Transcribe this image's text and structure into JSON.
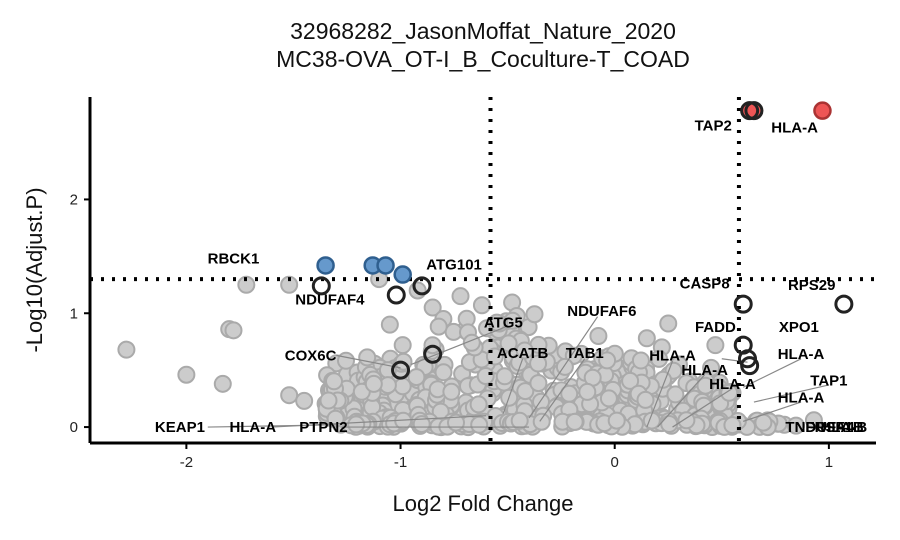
{
  "chart_data": {
    "type": "scatter",
    "title": "32968282_JasonMoffat_Nature_2020",
    "subtitle": "MC38-OVA_OT-I_B_Coculture-T_COAD",
    "xlabel": "Log2 Fold Change",
    "ylabel": "-Log10(Adjust.P)",
    "xlim": [
      -2.45,
      1.22
    ],
    "ylim": [
      -0.14,
      2.9
    ],
    "xticks": [
      -2,
      -1,
      0,
      1
    ],
    "yticks": [
      0,
      1,
      2
    ],
    "thresholds": {
      "x": [
        -0.58,
        0.58
      ],
      "y": 1.3
    },
    "grid": false,
    "legend": "none",
    "colors": {
      "down": "#6699cc",
      "up": "#ee5555",
      "ns": "#cccccc",
      "highlight": "#222222"
    },
    "down_points": [
      {
        "x": -1.35,
        "y": 1.42
      },
      {
        "x": -1.13,
        "y": 1.42
      },
      {
        "x": -1.07,
        "y": 1.42
      },
      {
        "x": -0.99,
        "y": 1.34
      }
    ],
    "up_points": [
      {
        "x": 0.97,
        "y": 2.78
      },
      {
        "x": 0.63,
        "y": 2.78
      },
      {
        "x": 0.65,
        "y": 2.78
      }
    ],
    "ns_points": [
      {
        "x": -2.28,
        "y": 0.68
      },
      {
        "x": -2.0,
        "y": 0.46
      },
      {
        "x": -1.83,
        "y": 0.38
      },
      {
        "x": -1.8,
        "y": 0.86
      },
      {
        "x": -1.78,
        "y": 0.85
      },
      {
        "x": -1.72,
        "y": 1.25
      },
      {
        "x": -1.52,
        "y": 1.25
      },
      {
        "x": -1.52,
        "y": 0.28
      },
      {
        "x": -1.45,
        "y": 0.23
      },
      {
        "x": -1.3,
        "y": 0.56
      },
      {
        "x": -1.25,
        "y": 0.46
      },
      {
        "x": -1.2,
        "y": 0.38
      },
      {
        "x": -1.18,
        "y": 0.26
      },
      {
        "x": -1.1,
        "y": 1.3
      },
      {
        "x": -1.05,
        "y": 0.9
      },
      {
        "x": -0.99,
        "y": 0.72
      },
      {
        "x": -0.92,
        "y": 1.2
      },
      {
        "x": -0.85,
        "y": 1.05
      },
      {
        "x": -0.8,
        "y": 0.95
      },
      {
        "x": -0.72,
        "y": 1.15
      },
      {
        "x": -0.7,
        "y": 0.85
      },
      {
        "x": -0.65,
        "y": 0.55
      },
      {
        "x": -0.62,
        "y": 1.07
      },
      {
        "x": -0.55,
        "y": 0.7
      },
      {
        "x": -0.5,
        "y": 0.4
      },
      {
        "x": -0.45,
        "y": 0.68
      },
      {
        "x": -0.4,
        "y": 0.3
      },
      {
        "x": -0.3,
        "y": 0.55
      },
      {
        "x": -0.2,
        "y": 0.62
      },
      {
        "x": -0.1,
        "y": 0.45
      },
      {
        "x": 0.05,
        "y": 0.35
      },
      {
        "x": 0.15,
        "y": 0.78
      },
      {
        "x": 0.22,
        "y": 0.7
      },
      {
        "x": 0.25,
        "y": 0.91
      },
      {
        "x": 0.3,
        "y": 0.55
      },
      {
        "x": 0.35,
        "y": 0.4
      },
      {
        "x": 0.45,
        "y": 0.52
      },
      {
        "x": 0.47,
        "y": 0.72
      },
      {
        "x": 0.55,
        "y": 0.3
      },
      {
        "x": 0.72,
        "y": 0.02
      },
      {
        "x": 0.93,
        "y": 0.06
      }
    ],
    "highlight_points": [
      {
        "gene": "TAP2",
        "x": 0.63,
        "y": 2.78
      },
      {
        "gene": "HLA-A",
        "x": 0.65,
        "y": 2.78
      },
      {
        "gene": "RBCK1",
        "x": -1.37,
        "y": 1.24
      },
      {
        "gene": "ATG101",
        "x": -0.9,
        "y": 1.24
      },
      {
        "gene": "NDUFAF4",
        "x": -1.02,
        "y": 1.16
      },
      {
        "gene": "CASP8",
        "x": 0.6,
        "y": 1.08
      },
      {
        "gene": "RPS29",
        "x": 1.07,
        "y": 1.08
      },
      {
        "gene": "FADD",
        "x": 0.6,
        "y": 0.72
      },
      {
        "gene": "XPO1",
        "x": 0.62,
        "y": 0.6
      },
      {
        "gene": "HLA-A",
        "x": 0.63,
        "y": 0.54
      },
      {
        "gene": "ATG5",
        "x": -0.85,
        "y": 0.64
      },
      {
        "gene": "COX6C",
        "x": -1.0,
        "y": 0.5
      }
    ],
    "labels": [
      {
        "text": "TAP2",
        "x": 0.46,
        "y": 2.65
      },
      {
        "text": "HLA-A",
        "x": 0.84,
        "y": 2.63
      },
      {
        "text": "RBCK1",
        "x": -1.78,
        "y": 1.48
      },
      {
        "text": "ATG101",
        "x": -0.75,
        "y": 1.43
      },
      {
        "text": "NDUFAF4",
        "x": -1.33,
        "y": 1.12
      },
      {
        "text": "CASP8",
        "x": 0.42,
        "y": 1.26
      },
      {
        "text": "RPS29",
        "x": 0.92,
        "y": 1.25
      },
      {
        "text": "ATG5",
        "x": -0.52,
        "y": 0.92
      },
      {
        "text": "NDUFAF6",
        "x": -0.06,
        "y": 1.02
      },
      {
        "text": "FADD",
        "x": 0.47,
        "y": 0.88
      },
      {
        "text": "XPO1",
        "x": 0.86,
        "y": 0.88
      },
      {
        "text": "COX6C",
        "x": -1.42,
        "y": 0.63
      },
      {
        "text": "ACATB",
        "x": -0.43,
        "y": 0.65
      },
      {
        "text": "TAB1",
        "x": -0.14,
        "y": 0.65
      },
      {
        "text": "HLA-A",
        "x": 0.27,
        "y": 0.63
      },
      {
        "text": "HLA-A",
        "x": 0.87,
        "y": 0.64
      },
      {
        "text": "HLA-A",
        "x": 0.42,
        "y": 0.5
      },
      {
        "text": "HLA-A",
        "x": 0.55,
        "y": 0.38
      },
      {
        "text": "TAP1",
        "x": 1.0,
        "y": 0.41
      },
      {
        "text": "HLA-A",
        "x": 0.87,
        "y": 0.26
      },
      {
        "text": "KEAP1",
        "x": -2.03,
        "y": 0.0
      },
      {
        "text": "HLA-A",
        "x": -1.69,
        "y": 0.0
      },
      {
        "text": "PTPN2",
        "x": -1.36,
        "y": 0.0
      },
      {
        "text": "TNFRSF1B",
        "x": 0.98,
        "y": 0.0
      },
      {
        "text": "NDUFA4",
        "x": 0.98,
        "y": 0.0
      },
      {
        "text": "HLA-B",
        "x": 1.07,
        "y": 0.0
      }
    ]
  }
}
